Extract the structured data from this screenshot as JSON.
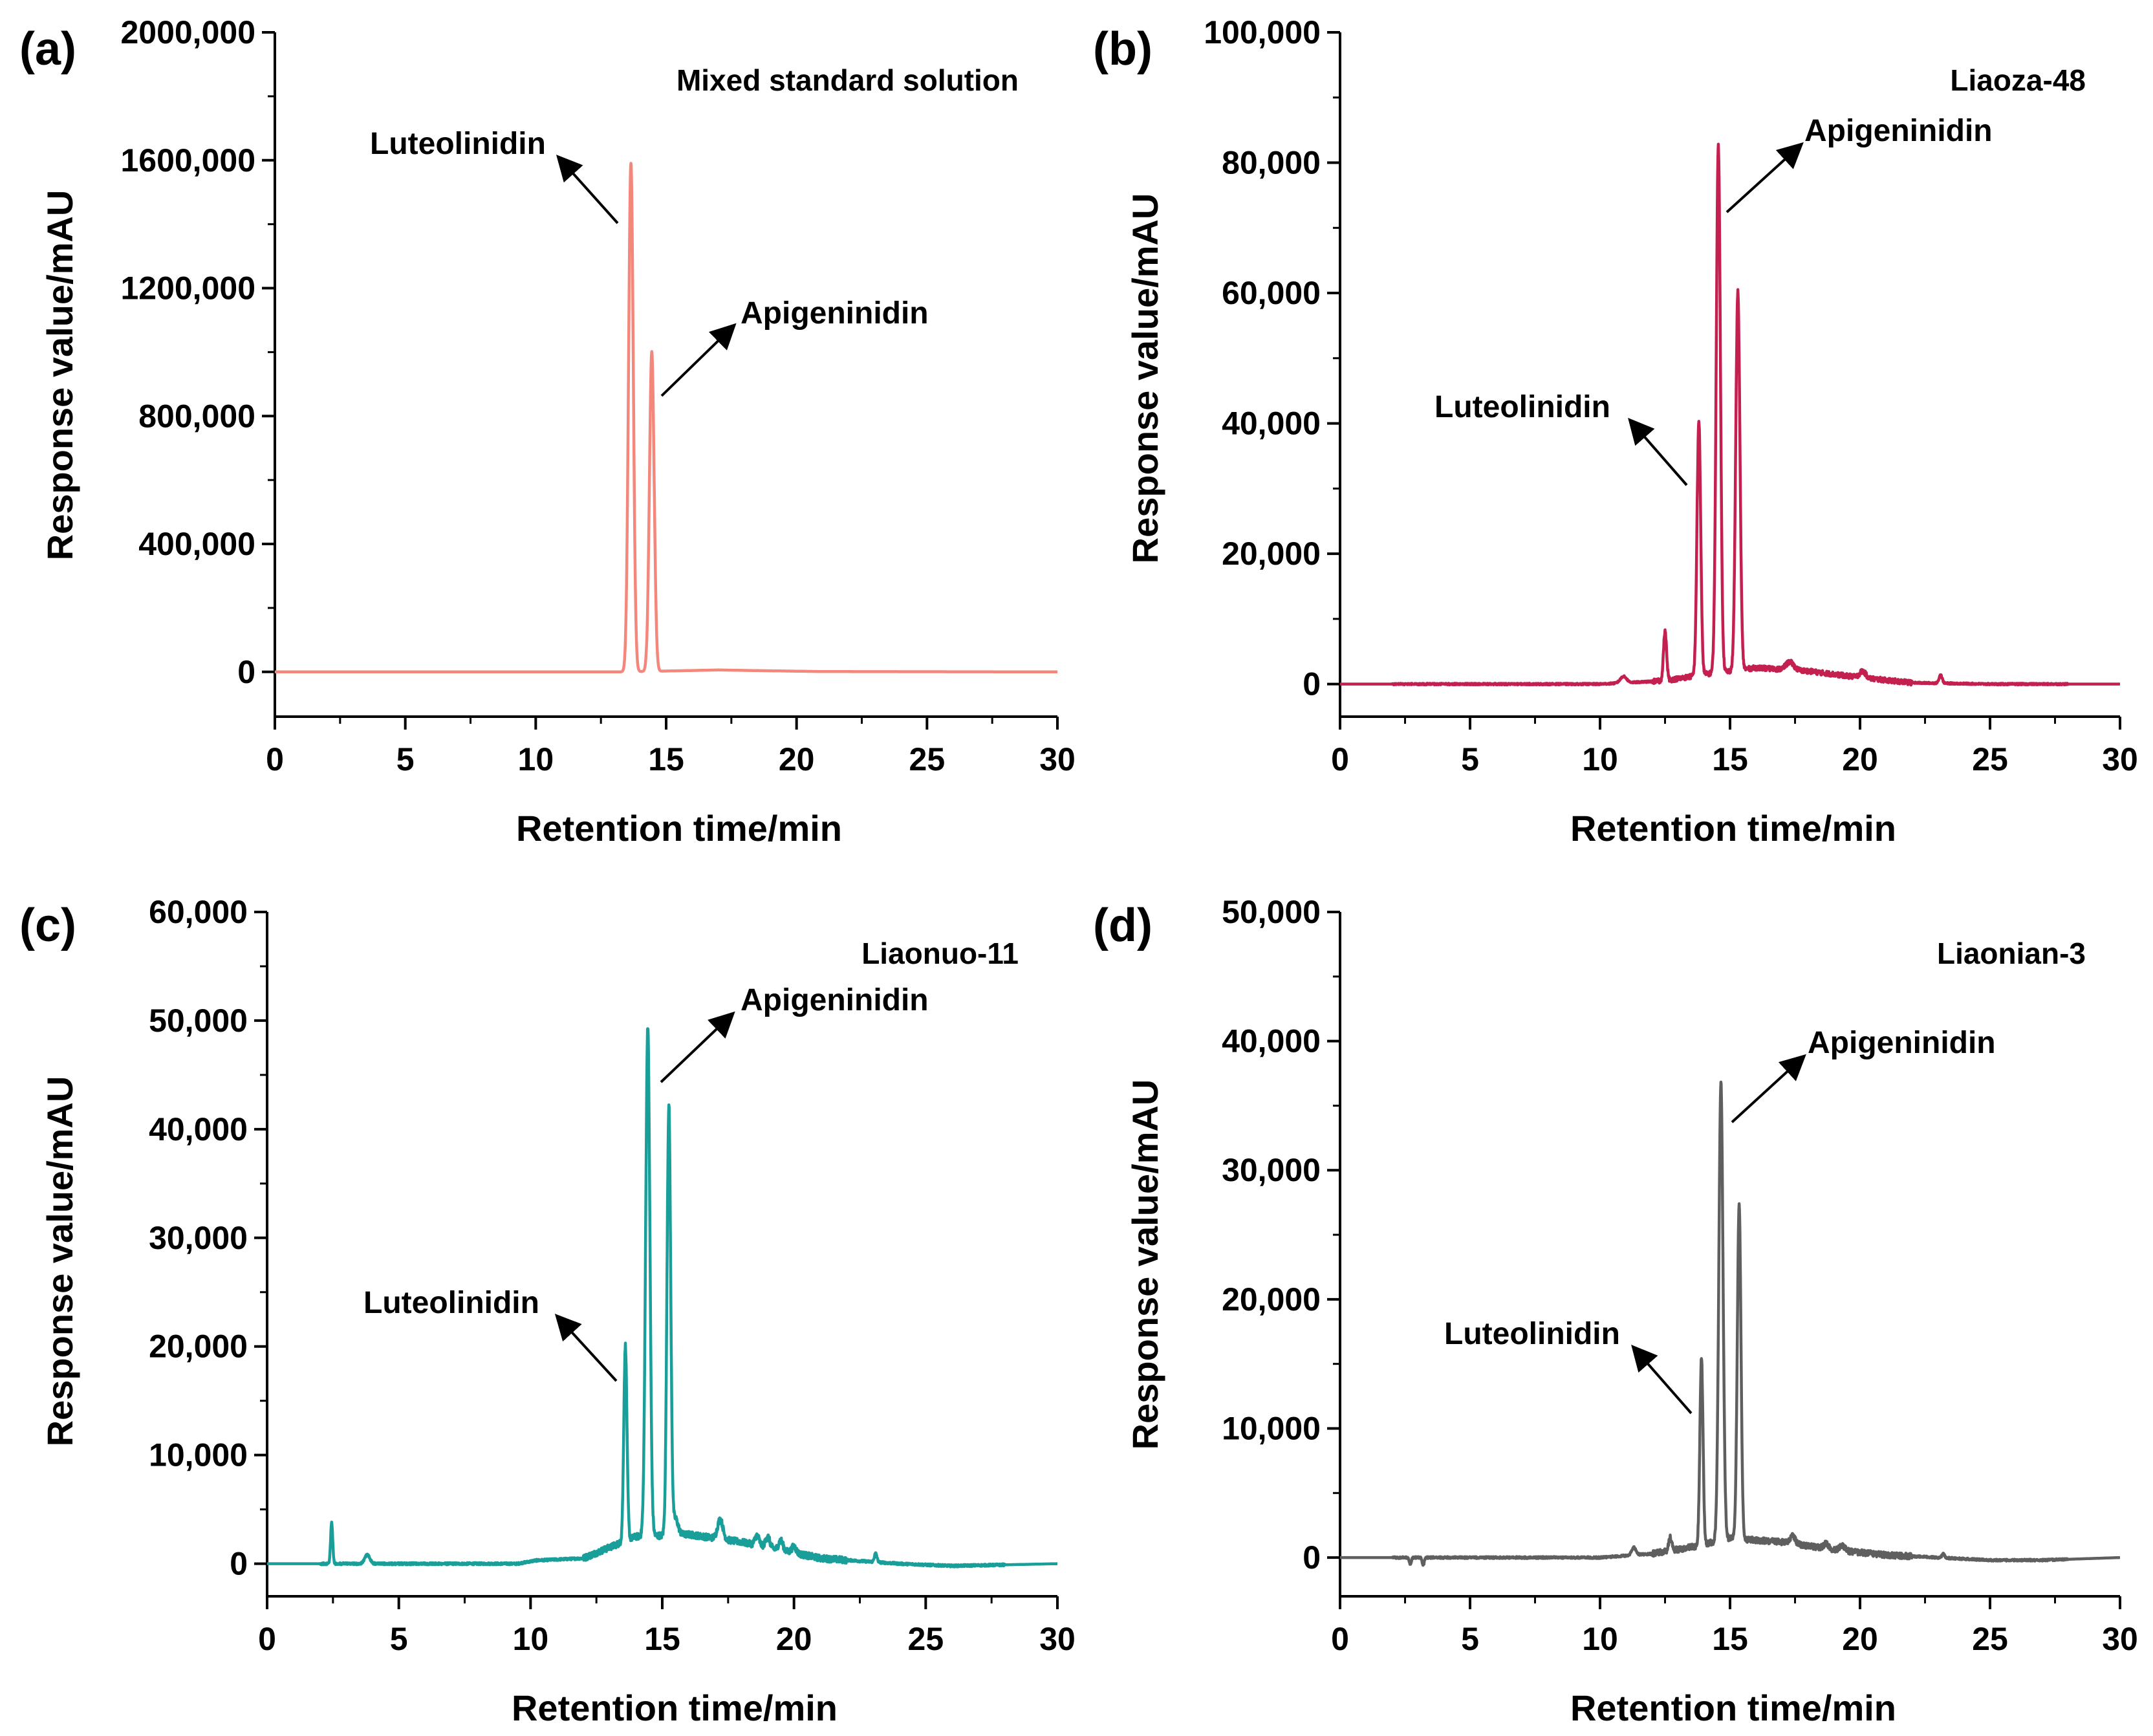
{
  "figure": {
    "arrow_color": "#000000",
    "axis_color": "#000000"
  },
  "chart_data": [
    {
      "type": "line",
      "panel": "(a)",
      "title": "Mixed standard solution",
      "xlabel": "Retention time/min",
      "ylabel": "Response value/mAU",
      "xlim": [
        0,
        30
      ],
      "ylim": [
        -140000,
        2000000
      ],
      "xticks": [
        0,
        5,
        10,
        15,
        20,
        25,
        30
      ],
      "xtick_labels": [
        "0",
        "5",
        "10",
        "15",
        "20",
        "25",
        "30"
      ],
      "yticks": [
        0,
        400000,
        800000,
        1200000,
        1600000,
        2000000
      ],
      "ytick_labels": [
        "0",
        "400,000",
        "800,000",
        "1200,000",
        "1600,000",
        "2000,000"
      ],
      "color": "#f4877c",
      "series": [
        {
          "name": "Mixed standard solution",
          "baseline": [
            [
              0,
              0
            ],
            [
              13.4,
              0
            ],
            [
              17,
              6000
            ],
            [
              18.5,
              4000
            ],
            [
              21,
              1000
            ],
            [
              30,
              0
            ]
          ],
          "peaks": [
            [
              13.65,
              1590000,
              0.09
            ],
            [
              14.45,
              1000000,
              0.09
            ]
          ],
          "noise": 0
        }
      ],
      "annotations": [
        {
          "text": "Luteolinidin",
          "x": 13.65,
          "y": 1590000
        },
        {
          "text": "Apigeninidin",
          "x": 14.45,
          "y": 1000000
        }
      ]
    },
    {
      "type": "line",
      "panel": "(b)",
      "title": "Liaoza-48",
      "xlabel": "Retention time/min",
      "ylabel": "Response value/mAU",
      "xlim": [
        0,
        30
      ],
      "ylim": [
        -5000,
        100000
      ],
      "xticks": [
        0,
        5,
        10,
        15,
        20,
        25,
        30
      ],
      "xtick_labels": [
        "0",
        "5",
        "10",
        "15",
        "20",
        "25",
        "30"
      ],
      "yticks": [
        0,
        20000,
        40000,
        60000,
        80000,
        100000
      ],
      "ytick_labels": [
        "0",
        "20,000",
        "40,000",
        "60,000",
        "80,000",
        "100,000"
      ],
      "color": "#c4204f",
      "series": [
        {
          "name": "Liaoza-48",
          "baseline": [
            [
              0,
              0
            ],
            [
              10,
              0
            ],
            [
              12.5,
              500
            ],
            [
              14,
              1500
            ],
            [
              16,
              2500
            ],
            [
              18,
              2000
            ],
            [
              20,
              1000
            ],
            [
              22,
              200
            ],
            [
              25,
              0
            ],
            [
              30,
              0
            ]
          ],
          "peaks": [
            [
              10.9,
              1000,
              0.12
            ],
            [
              12.5,
              7500,
              0.06
            ],
            [
              13.8,
              39000,
              0.07
            ],
            [
              14.55,
              81000,
              0.08
            ],
            [
              15.3,
              58000,
              0.08
            ],
            [
              17.3,
              1200,
              0.15
            ],
            [
              20.1,
              1000,
              0.12
            ],
            [
              23.1,
              1300,
              0.06
            ]
          ],
          "noise": 250
        }
      ],
      "annotations": [
        {
          "text": "Luteolinidin",
          "x": 13.8,
          "y": 39000
        },
        {
          "text": "Apigeninidin",
          "x": 14.55,
          "y": 81000
        }
      ]
    },
    {
      "type": "line",
      "panel": "(c)",
      "title": "Liaonuo-11",
      "xlabel": "Retention time/min",
      "ylabel": "Response value/mAU",
      "xlim": [
        0,
        30
      ],
      "ylim": [
        -3000,
        60000
      ],
      "xticks": [
        0,
        5,
        10,
        15,
        20,
        25,
        30
      ],
      "xtick_labels": [
        "0",
        "5",
        "10",
        "15",
        "20",
        "25",
        "30"
      ],
      "yticks": [
        0,
        10000,
        20000,
        30000,
        40000,
        50000,
        60000
      ],
      "ytick_labels": [
        "0",
        "10,000",
        "20,000",
        "30,000",
        "40,000",
        "50,000",
        "60,000"
      ],
      "color": "#1a9e9a",
      "series": [
        {
          "name": "Liaonuo-11",
          "baseline": [
            [
              0,
              0
            ],
            [
              9.5,
              0
            ],
            [
              10.2,
              300
            ],
            [
              12,
              500
            ],
            [
              13,
              1500
            ],
            [
              14,
              2500
            ],
            [
              16,
              2700
            ],
            [
              18,
              2000
            ],
            [
              20,
              1000
            ],
            [
              21,
              500
            ],
            [
              24,
              0
            ],
            [
              26,
              -200
            ],
            [
              30,
              0
            ]
          ],
          "peaks": [
            [
              2.45,
              3800,
              0.04
            ],
            [
              3.8,
              800,
              0.1
            ],
            [
              13.6,
              18000,
              0.06
            ],
            [
              14.45,
              47000,
              0.08
            ],
            [
              15.25,
              39500,
              0.07
            ],
            [
              15.5,
              1500,
              0.1
            ],
            [
              17.2,
              1800,
              0.1
            ],
            [
              18.6,
              900,
              0.08
            ],
            [
              19.0,
              1000,
              0.08
            ],
            [
              19.5,
              900,
              0.08
            ],
            [
              20.0,
              600,
              0.08
            ],
            [
              23.1,
              800,
              0.05
            ]
          ],
          "noise": 200
        }
      ],
      "annotations": [
        {
          "text": "Luteolinidin",
          "x": 13.6,
          "y": 20600
        },
        {
          "text": "Apigeninidin",
          "x": 14.45,
          "y": 49500
        }
      ]
    },
    {
      "type": "line",
      "panel": "(d)",
      "title": "Liaonian-3",
      "xlabel": "Retention time/min",
      "ylabel": "Response value/mAU",
      "xlim": [
        0,
        30
      ],
      "ylim": [
        -3000,
        50000
      ],
      "xticks": [
        0,
        5,
        10,
        15,
        20,
        25,
        30
      ],
      "xtick_labels": [
        "0",
        "5",
        "10",
        "15",
        "20",
        "25",
        "30"
      ],
      "yticks": [
        0,
        10000,
        20000,
        30000,
        40000,
        50000
      ],
      "ytick_labels": [
        "0",
        "10,000",
        "20,000",
        "30,000",
        "40,000",
        "50,000"
      ],
      "color": "#5f5f5f",
      "series": [
        {
          "name": "Liaonian-3",
          "baseline": [
            [
              0,
              0
            ],
            [
              10,
              0
            ],
            [
              12,
              300
            ],
            [
              13.5,
              800
            ],
            [
              15,
              1500
            ],
            [
              17,
              1200
            ],
            [
              19,
              600
            ],
            [
              21,
              200
            ],
            [
              23,
              0
            ],
            [
              25,
              -200
            ],
            [
              27,
              -200
            ],
            [
              30,
              0
            ]
          ],
          "peaks": [
            [
              2.7,
              -500,
              0.04
            ],
            [
              3.2,
              -600,
              0.04
            ],
            [
              11.3,
              600,
              0.08
            ],
            [
              12.7,
              1000,
              0.06
            ],
            [
              13.9,
              14500,
              0.06
            ],
            [
              14.65,
              35500,
              0.08
            ],
            [
              15.35,
              26000,
              0.07
            ],
            [
              17.4,
              600,
              0.1
            ],
            [
              18.7,
              400,
              0.1
            ],
            [
              19.3,
              400,
              0.1
            ],
            [
              23.2,
              300,
              0.05
            ]
          ],
          "noise": 150
        }
      ],
      "annotations": [
        {
          "text": "Luteolinidin",
          "x": 13.9,
          "y": 15000
        },
        {
          "text": "Apigeninidin",
          "x": 14.65,
          "y": 36500
        }
      ]
    }
  ]
}
